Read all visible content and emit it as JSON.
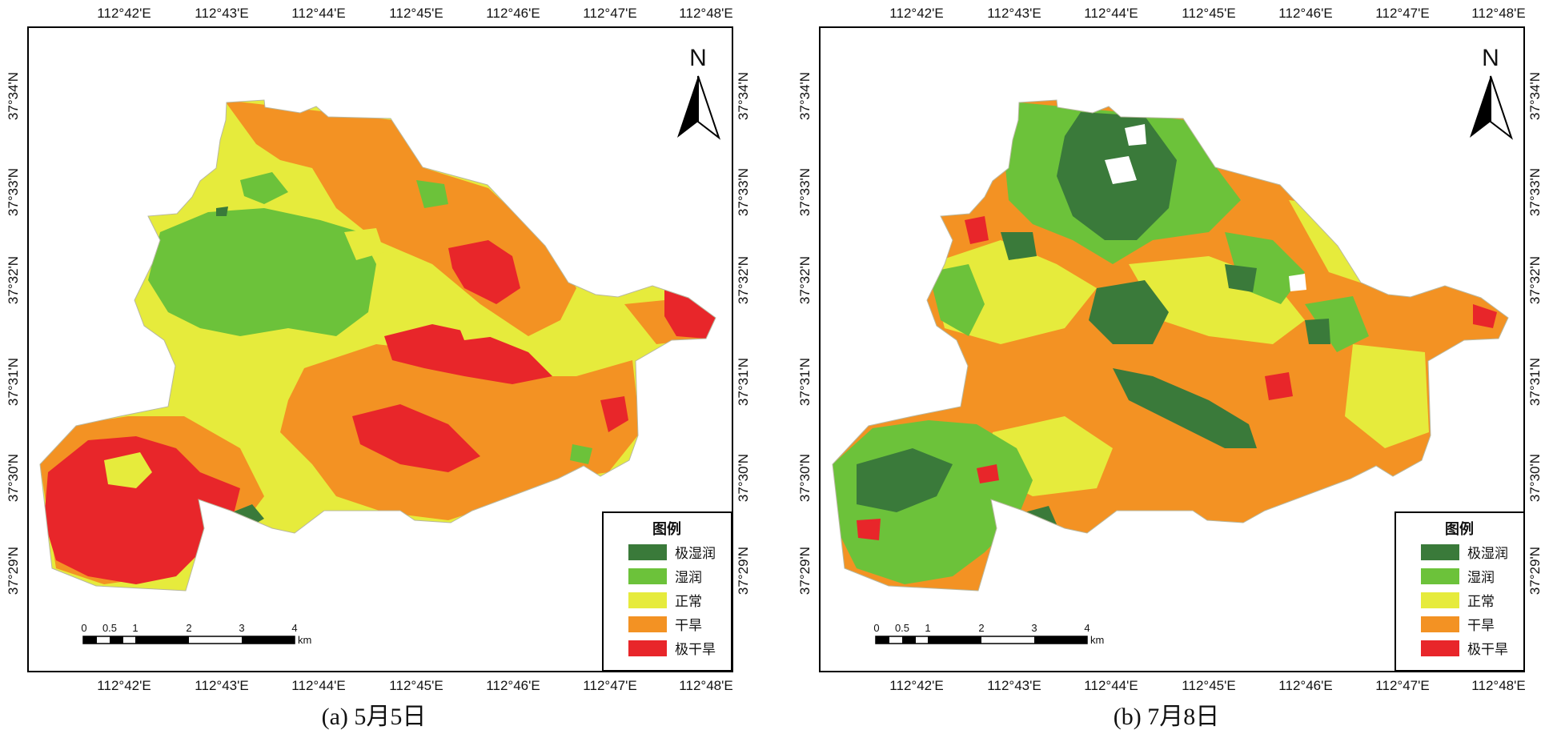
{
  "panels": [
    {
      "caption": "(a) 5月5日",
      "top_lon_labels": [
        "112°42'E",
        "112°43'E",
        "112°44'E",
        "112°45'E",
        "112°46'E",
        "112°47'E",
        "112°48'E"
      ],
      "bottom_lon_labels": [
        "112°42'E",
        "112°43'E",
        "112°44'E",
        "112°45'E",
        "112°46'E",
        "112°47'E",
        "112°48'E"
      ],
      "left_lat_labels": [
        "37°34'N",
        "37°33'N",
        "37°32'N",
        "37°31'N",
        "37°30'N",
        "37°29'N"
      ],
      "right_lat_labels": [
        "37°34'N",
        "37°33'N",
        "37°32'N",
        "37°31'N",
        "37°30'N",
        "37°29'N"
      ],
      "north_label": "N",
      "scale_bar": {
        "ticks": [
          "0",
          "0.5",
          "1",
          "2",
          "3",
          "4"
        ],
        "unit": "km"
      },
      "legend": {
        "title": "图例",
        "items": [
          {
            "label": "极湿润",
            "color": "#3a7a3a"
          },
          {
            "label": "湿润",
            "color": "#6cc23a"
          },
          {
            "label": "正常",
            "color": "#e6eb3c"
          },
          {
            "label": "干旱",
            "color": "#f39223"
          },
          {
            "label": "极干旱",
            "color": "#e8262a"
          }
        ]
      }
    },
    {
      "caption": "(b) 7月8日",
      "top_lon_labels": [
        "112°42'E",
        "112°43'E",
        "112°44'E",
        "112°45'E",
        "112°46'E",
        "112°47'E",
        "112°48'E"
      ],
      "bottom_lon_labels": [
        "112°42'E",
        "112°43'E",
        "112°44'E",
        "112°45'E",
        "112°46'E",
        "112°47'E",
        "112°48'E"
      ],
      "left_lat_labels": [
        "37°34'N",
        "37°33'N",
        "37°32'N",
        "37°31'N",
        "37°30'N",
        "37°29'N"
      ],
      "right_lat_labels": [
        "37°34'N",
        "37°33'N",
        "37°32'N",
        "37°31'N",
        "37°30'N",
        "37°29'N"
      ],
      "north_label": "N",
      "scale_bar": {
        "ticks": [
          "0",
          "0.5",
          "1",
          "2",
          "3",
          "4"
        ],
        "unit": "km"
      },
      "legend": {
        "title": "图例",
        "items": [
          {
            "label": "极湿润",
            "color": "#3a7a3a"
          },
          {
            "label": "湿润",
            "color": "#6cc23a"
          },
          {
            "label": "正常",
            "color": "#e6eb3c"
          },
          {
            "label": "干旱",
            "color": "#f39223"
          },
          {
            "label": "极干旱",
            "color": "#e8262a"
          }
        ]
      }
    }
  ]
}
